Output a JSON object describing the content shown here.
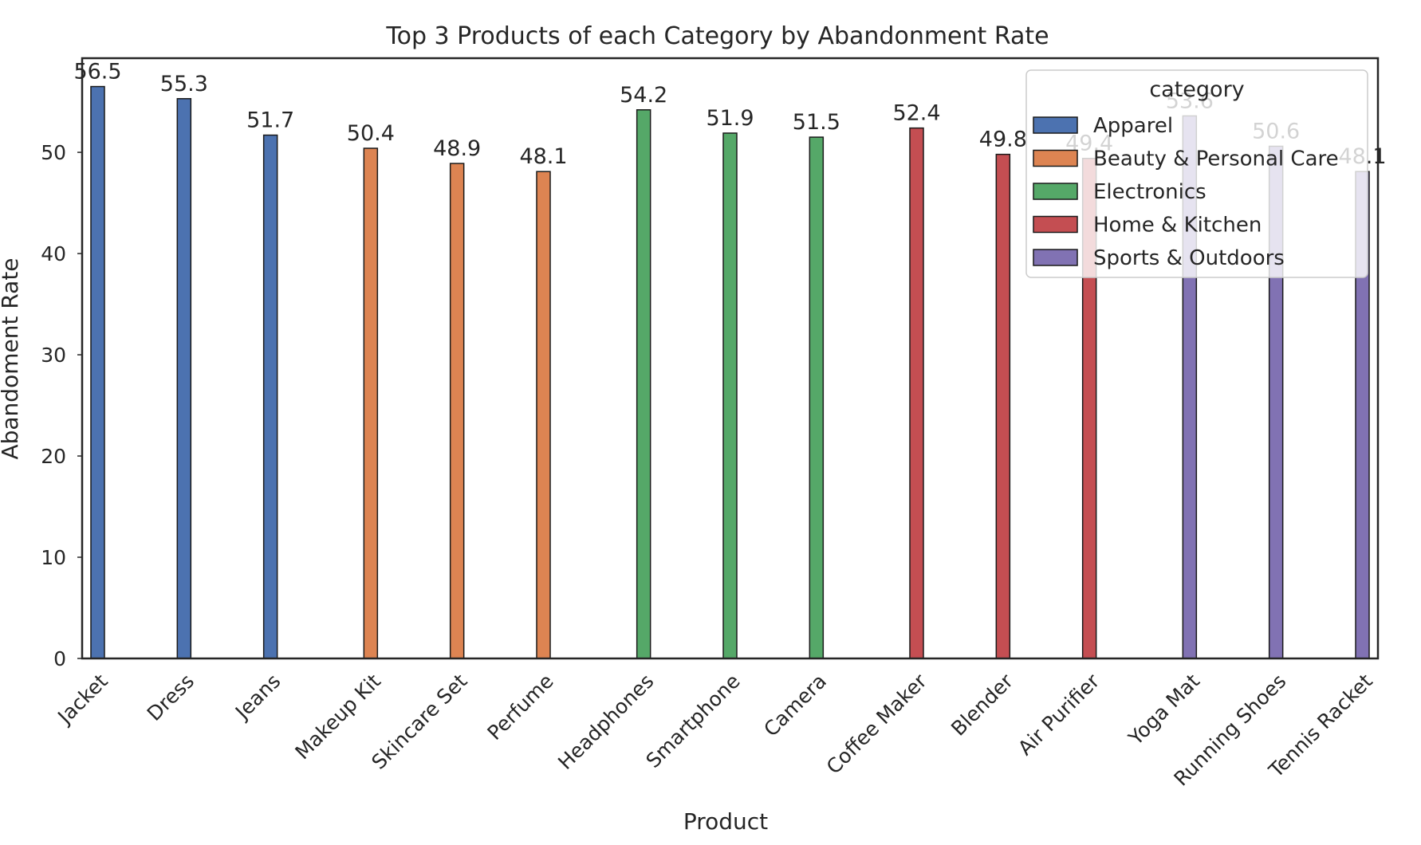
{
  "chart_data": {
    "type": "bar",
    "title": "Top 3 Products of each Category by Abandonment Rate",
    "xlabel": "Product",
    "ylabel": "Abandoment Rate",
    "ylim": [
      0,
      59.3
    ],
    "yticks": [
      0,
      10,
      20,
      30,
      40,
      50
    ],
    "categories": [
      "Jacket",
      "Dress",
      "Jeans",
      "Makeup Kit",
      "Skincare Set",
      "Perfume",
      "Headphones",
      "Smartphone",
      "Camera",
      "Coffee Maker",
      "Blender",
      "Air Purifier",
      "Yoga Mat",
      "Running Shoes",
      "Tennis Racket"
    ],
    "bar_categories": [
      "Apparel",
      "Apparel",
      "Apparel",
      "Beauty & Personal Care",
      "Beauty & Personal Care",
      "Beauty & Personal Care",
      "Electronics",
      "Electronics",
      "Electronics",
      "Home & Kitchen",
      "Home & Kitchen",
      "Home & Kitchen",
      "Sports & Outdoors",
      "Sports & Outdoors",
      "Sports & Outdoors"
    ],
    "values": [
      56.5,
      55.3,
      51.7,
      50.4,
      48.9,
      48.1,
      54.2,
      51.9,
      51.5,
      52.4,
      49.8,
      49.4,
      53.6,
      50.6,
      48.1
    ],
    "value_labels": [
      "56.5",
      "55.3",
      "51.7",
      "50.4",
      "48.9",
      "48.1",
      "54.2",
      "51.9",
      "51.5",
      "52.4",
      "49.8",
      "49.4",
      "53.6",
      "50.6",
      "48.1"
    ],
    "legend": {
      "title": "category",
      "placement": "top-right",
      "entries": [
        {
          "label": "Apparel",
          "color": "#4c72b0"
        },
        {
          "label": "Beauty & Personal Care",
          "color": "#dd8452"
        },
        {
          "label": "Electronics",
          "color": "#55a868"
        },
        {
          "label": "Home & Kitchen",
          "color": "#c44e52"
        },
        {
          "label": "Sports & Outdoors",
          "color": "#8172b3"
        }
      ]
    },
    "grid": false
  }
}
